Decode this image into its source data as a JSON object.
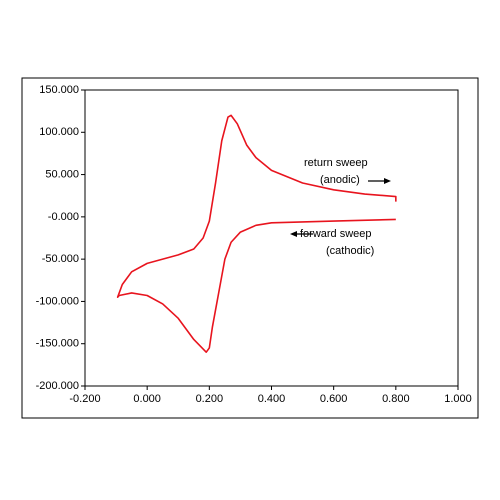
{
  "chart_data": {
    "type": "line",
    "series": [
      {
        "color": "#e8141e",
        "x": [
          0.8,
          0.6,
          0.4,
          0.35,
          0.3,
          0.27,
          0.25,
          0.23,
          0.21,
          0.2,
          0.19,
          0.15,
          0.1,
          0.05,
          0.0,
          -0.05,
          -0.09,
          -0.095,
          -0.08,
          -0.05,
          0.0,
          0.05,
          0.1,
          0.15,
          0.18,
          0.2,
          0.22,
          0.24,
          0.26,
          0.27,
          0.29,
          0.32,
          0.35,
          0.4,
          0.5,
          0.6,
          0.7,
          0.8,
          0.8
        ],
        "values": [
          -3,
          -5,
          -7,
          -10,
          -18,
          -30,
          -50,
          -90,
          -130,
          -155,
          -160,
          -145,
          -120,
          -103,
          -93,
          -90,
          -93,
          -95,
          -80,
          -65,
          -55,
          -50,
          -45,
          -38,
          -25,
          -5,
          40,
          90,
          118,
          120,
          110,
          85,
          70,
          55,
          40,
          32,
          27,
          24,
          18
        ]
      }
    ],
    "xlim": [
      -0.2,
      1.0
    ],
    "xticks": [
      {
        "value": -0.2,
        "label": "-0.200"
      },
      {
        "value": 0,
        "label": "0.000"
      },
      {
        "value": 0.2,
        "label": "0.200"
      },
      {
        "value": 0.4,
        "label": "0.400"
      },
      {
        "value": 0.6,
        "label": "0.600"
      },
      {
        "value": 0.8,
        "label": "0.800"
      },
      {
        "value": 1.0,
        "label": "1.000"
      }
    ],
    "ylim": [
      -200,
      150
    ],
    "yticks": [
      {
        "value": 150,
        "label": "150.000"
      },
      {
        "value": 100,
        "label": "100.000"
      },
      {
        "value": 50,
        "label": "50.000"
      },
      {
        "value": 0,
        "label": "-0.000"
      },
      {
        "value": -50,
        "label": "-50.000"
      },
      {
        "value": -100,
        "label": "-100.000"
      },
      {
        "value": -150,
        "label": "-150.000"
      },
      {
        "value": -200,
        "label": "-200.000"
      }
    ],
    "grid": false,
    "annotations": [
      "return sweep",
      "(anodic)",
      "forward sweep",
      "(cathodic)"
    ]
  }
}
